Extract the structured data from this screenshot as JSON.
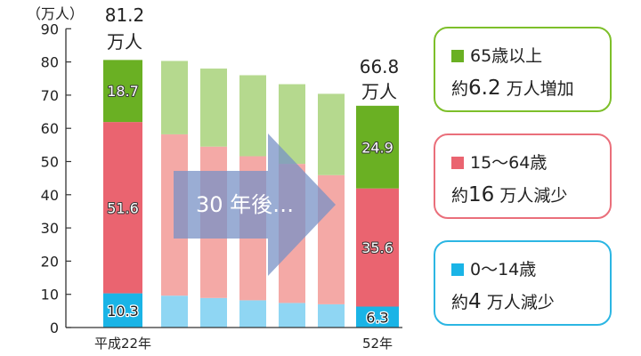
{
  "chart_data": {
    "type": "bar",
    "stacked": true,
    "unit_label": "（万人）",
    "ylim": [
      0,
      90
    ],
    "yticks": [
      0,
      10,
      20,
      30,
      40,
      50,
      60,
      70,
      80,
      90
    ],
    "categories": [
      "平成22年",
      "",
      "",
      "",
      "",
      "",
      "52年"
    ],
    "series": [
      {
        "name": "0〜14歳",
        "values": [
          10.3,
          9.6,
          8.9,
          8.2,
          7.4,
          7.0,
          6.3
        ],
        "colors": {
          "main": "#1ab4e6",
          "faded": "#8fd6f3"
        }
      },
      {
        "name": "15〜64歳",
        "values": [
          51.6,
          48.6,
          45.6,
          43.4,
          41.9,
          38.9,
          35.6
        ],
        "colors": {
          "main": "#ea6470",
          "faded": "#f4a9a6"
        }
      },
      {
        "name": "65歳以上",
        "values": [
          18.7,
          22.1,
          23.5,
          24.4,
          24.0,
          24.5,
          24.9
        ],
        "colors": {
          "main": "#6ab023",
          "faded": "#b5d98e"
        }
      }
    ],
    "data_labels": {
      "first": [
        "10.3",
        "51.6",
        "18.7"
      ],
      "last": [
        "6.3",
        "35.6",
        "24.9"
      ]
    },
    "totals": [
      {
        "value": "81.2",
        "unit": "万人"
      },
      {
        "value": "66.8",
        "unit": "万人"
      }
    ],
    "annotation": "30 年後…"
  },
  "legend": [
    {
      "swatch": "#6ab023",
      "border": "#7dbf2a",
      "label": "65歳以上",
      "line2_prefix": "約",
      "line2_value": "6.2",
      "line2_suffix": " 万人増加"
    },
    {
      "swatch": "#ea6470",
      "border": "#ea6f7b",
      "label": "15〜64歳",
      "line2_prefix": "約",
      "line2_value": "16",
      "line2_suffix": " 万人減少"
    },
    {
      "swatch": "#1ab4e6",
      "border": "#2cb6e3",
      "label": "0〜14歳",
      "line2_prefix": "約",
      "line2_value": "4",
      "line2_suffix": " 万人減少"
    }
  ]
}
